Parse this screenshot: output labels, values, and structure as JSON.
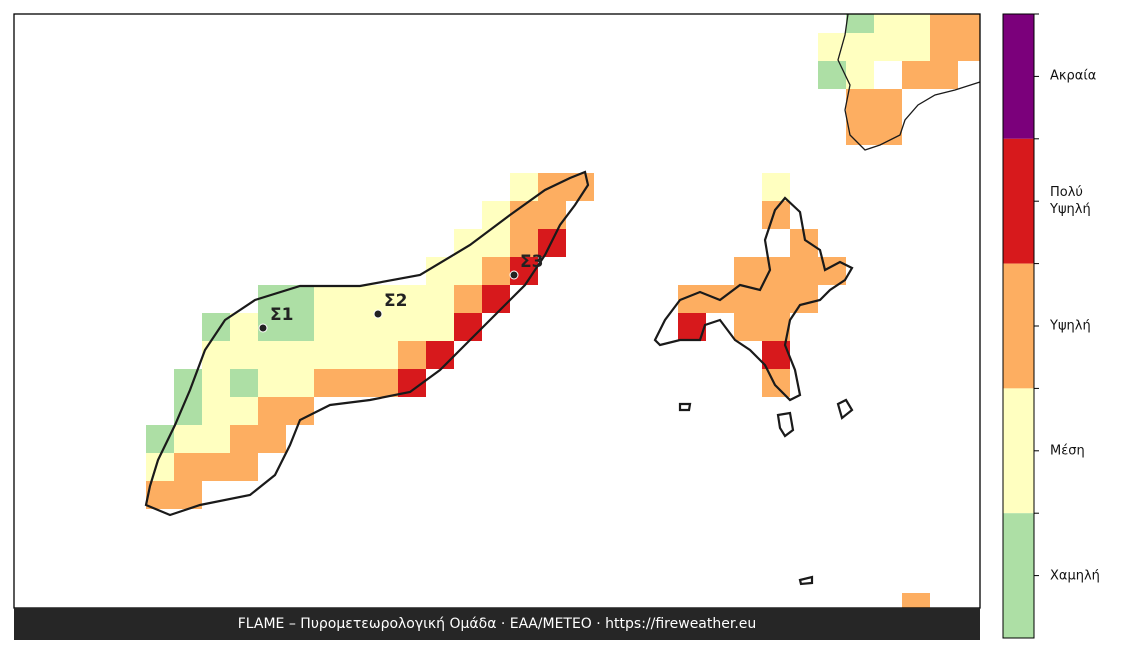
{
  "map": {
    "stations": [
      {
        "label": "Σ1"
      },
      {
        "label": "Σ2"
      },
      {
        "label": "Σ3"
      }
    ],
    "legend": [
      {
        "label": "Ακραία",
        "color": "#7b007b"
      },
      {
        "label": "Πολύ Υψηλή",
        "color": "#d7191c"
      },
      {
        "label": "Υψηλή",
        "color": "#fdae61"
      },
      {
        "label": "Μέση",
        "color": "#ffffc0"
      },
      {
        "label": "Χαμηλή",
        "color": "#addfa5"
      }
    ],
    "footer": "FLAME – Πυρομετεωρολογική Ομάδα · ΕΑΑ/METEO · https://fireweather.eu"
  }
}
